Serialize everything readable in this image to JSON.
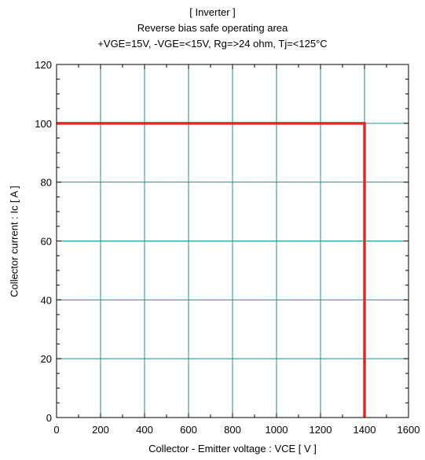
{
  "chart_data": {
    "type": "line",
    "title_lines": [
      "[ Inverter ]",
      "Reverse bias safe operating area",
      "+VGE=15V, -VGE=<15V, Rg=>24 ohm, Tj=<125°C"
    ],
    "xlabel": "Collector - Emitter voltage  :  VCE  [ V ]",
    "ylabel": "Collector current  : Ic  [ A ]",
    "xlim": [
      0,
      1600
    ],
    "ylim": [
      0,
      120
    ],
    "xticks": [
      0,
      200,
      400,
      600,
      800,
      1000,
      1200,
      1400,
      1600
    ],
    "yticks": [
      0,
      20,
      40,
      60,
      80,
      100,
      120
    ],
    "grid": true,
    "series": [
      {
        "color": "#e8262a",
        "x": [
          0,
          1400,
          1400
        ],
        "y": [
          100,
          100,
          0
        ]
      }
    ],
    "grid_color": "#1f8f8f"
  }
}
